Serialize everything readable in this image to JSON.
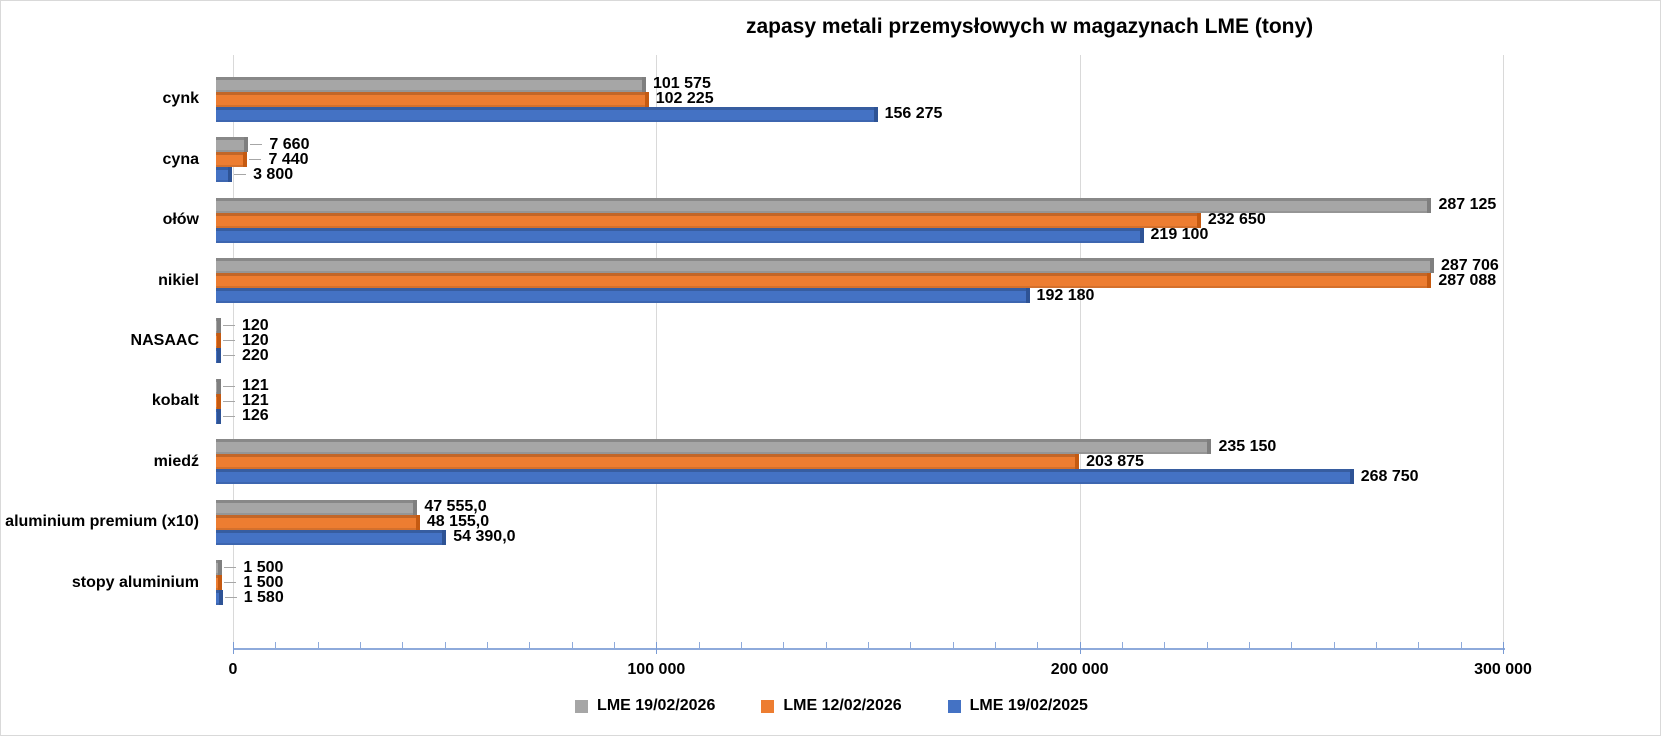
{
  "title": "zapasy metali przemysłowych w magazynach LME (tony)",
  "colors": {
    "series_gray": "#a6a6a6",
    "series_gray_dark": "#7f7f7f",
    "series_orange": "#ed7d31",
    "series_orange_dark": "#c55a11",
    "series_blue": "#4472c4",
    "series_blue_dark": "#2e5395",
    "gridline": "#d9d9d9",
    "axis": "#8eaadb",
    "text": "#000000"
  },
  "chart_data": {
    "type": "bar",
    "orientation": "horizontal",
    "title": "zapasy metali przemysłowych w magazynach LME (tony)",
    "grid": true,
    "legend_position": "bottom",
    "xlim": [
      0,
      300000
    ],
    "x_tick_values": [
      0,
      100000,
      200000,
      300000
    ],
    "x_tick_labels": [
      "0",
      "100 000",
      "200 000",
      "300 000"
    ],
    "minor_tick_step": 10000,
    "categories": [
      "cynk",
      "cyna",
      "ołów",
      "nikiel",
      "NASAAC",
      "kobalt",
      "miedź",
      "aluminium premium (x10)",
      "stopy aluminium"
    ],
    "series": [
      {
        "name": "LME 19/02/2026",
        "color": "#a6a6a6",
        "dark": "#7f7f7f",
        "values": [
          101575,
          7660,
          287125,
          287706,
          120,
          121,
          235150,
          47555,
          1500
        ],
        "labels": [
          "101 575",
          "7 660",
          "287 125",
          "287 706",
          "120",
          "121",
          "235 150",
          "47 555,0",
          "1 500"
        ]
      },
      {
        "name": "LME 12/02/2026",
        "color": "#ed7d31",
        "dark": "#c55a11",
        "values": [
          102225,
          7440,
          232650,
          287088,
          120,
          121,
          203875,
          48155,
          1500
        ],
        "labels": [
          "102 225",
          "7 440",
          "232 650",
          "287 088",
          "120",
          "121",
          "203 875",
          "48 155,0",
          "1 500"
        ]
      },
      {
        "name": "LME 19/02/2025",
        "color": "#4472c4",
        "dark": "#2e5395",
        "values": [
          156275,
          3800,
          219100,
          192180,
          220,
          126,
          268750,
          54390,
          1580
        ],
        "labels": [
          "156 275",
          "3 800",
          "219 100",
          "192 180",
          "220",
          "126",
          "268 750",
          "54 390,0",
          "1 580"
        ]
      }
    ]
  }
}
